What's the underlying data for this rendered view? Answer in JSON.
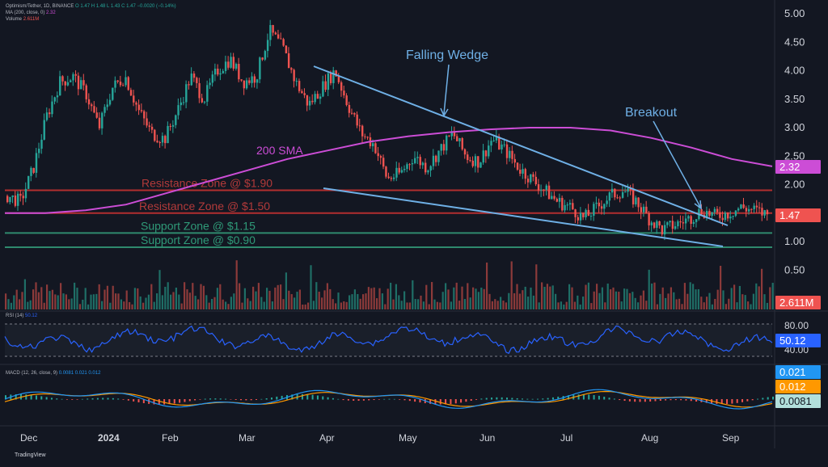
{
  "header": {
    "symbol_line": "Optimism/Tether, 1D, BINANCE",
    "ohlc": "O 1.47  H 1.48  L 1.43  C 1.47  −0.0020 (−0.14%)",
    "ma_label": "MA (200, close, 0)",
    "ma_value": "2.32",
    "volume_label": "Volume",
    "volume_value": "2.611M"
  },
  "annotations": {
    "wedge": "Falling Wedge",
    "breakout": "Breakout",
    "sma": "200 SMA",
    "res_190": "Resistance Zone @ $1.90",
    "res_150": "Resistance Zone @ $1.50",
    "sup_115": "Support Zone @ $1.15",
    "sup_090": "Support Zone @ $0.90"
  },
  "badges": {
    "ma": "2.32",
    "price": "1.47",
    "volume": "2.611M",
    "rsi": "50.12",
    "macd_line": "0.021",
    "macd_signal": "0.012",
    "macd_hist": "0.0081"
  },
  "rsi": {
    "label": "RSI (14)",
    "value": "50.12",
    "ticks": [
      "80.00",
      "40.00"
    ]
  },
  "macd": {
    "label": "MACD (12, 26, close, 9)",
    "values": "0.0081  0.021  0.012"
  },
  "footer": {
    "brand": "TradingView"
  },
  "colors": {
    "background": "#131722",
    "up": "#26a69a",
    "down": "#ef5350",
    "sma": "#cc4dd6",
    "wedge": "#6fb0e6",
    "resistance": "#b22f2f",
    "support": "#2f8a6e",
    "rsi": "#2962ff",
    "macd": "#2196f3",
    "signal": "#ff9800"
  },
  "chart_data": {
    "type": "candlestick",
    "x_ticks": [
      "Dec",
      "2024",
      "Feb",
      "Mar",
      "Apr",
      "May",
      "Jun",
      "Jul",
      "Aug",
      "Sep"
    ],
    "y_ticks": [
      "5.00",
      "4.50",
      "4.00",
      "3.50",
      "3.00",
      "2.50",
      "2.00",
      "1.50",
      "1.00",
      "0.50"
    ],
    "ylim": [
      0.5,
      5.0
    ],
    "price_path": [
      1.8,
      1.7,
      2.3,
      3.2,
      3.8,
      3.9,
      3.6,
      3.0,
      3.7,
      3.9,
      3.3,
      2.9,
      2.8,
      3.3,
      3.9,
      3.5,
      4.0,
      4.2,
      3.8,
      3.9,
      4.7,
      4.4,
      3.8,
      3.4,
      3.7,
      4.0,
      3.4,
      2.9,
      2.7,
      2.1,
      2.2,
      2.5,
      2.3,
      2.6,
      2.9,
      2.5,
      2.4,
      2.8,
      2.6,
      2.3,
      2.1,
      1.9,
      1.7,
      1.6,
      1.4,
      1.6,
      1.8,
      1.9,
      1.7,
      1.4,
      1.2,
      1.3,
      1.4,
      1.55,
      1.45,
      1.5,
      1.6,
      1.55,
      1.47
    ],
    "sma200": [
      1.5,
      1.5,
      1.55,
      1.65,
      1.85,
      2.05,
      2.25,
      2.45,
      2.6,
      2.75,
      2.85,
      2.92,
      2.97,
      3.0,
      3.0,
      2.95,
      2.82,
      2.65,
      2.45,
      2.32
    ],
    "levels": [
      {
        "name": "Resistance Zone @ $1.90",
        "value": 1.9
      },
      {
        "name": "Resistance Zone @ $1.50",
        "value": 1.5
      },
      {
        "name": "Support Zone @ $1.15",
        "value": 1.15
      },
      {
        "name": "Support Zone @ $0.90",
        "value": 0.9
      }
    ],
    "wedge_upper": [
      [
        4.05,
        "late Mar"
      ],
      [
        1.3,
        "early Sep"
      ]
    ],
    "wedge_lower": [
      [
        1.9,
        "late Mar"
      ],
      [
        0.93,
        "early Sep"
      ]
    ]
  }
}
